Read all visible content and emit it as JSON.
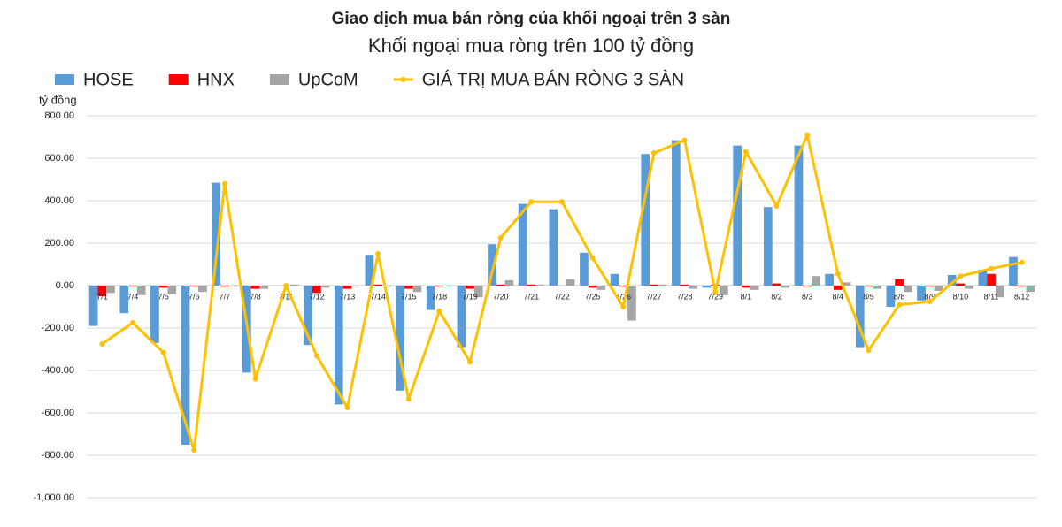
{
  "chart_data": {
    "type": "bar-line",
    "title": "Giao dịch mua bán ròng của khối ngoại trên 3 sàn",
    "subtitle": "Khối ngoại mua ròng trên 100 tỷ đồng",
    "y_label": "tỷ đồng",
    "categories": [
      "7/1",
      "7/4",
      "7/5",
      "7/6",
      "7/7",
      "7/8",
      "7/11",
      "7/12",
      "7/13",
      "7/14",
      "7/15",
      "7/18",
      "7/19",
      "7/20",
      "7/21",
      "7/22",
      "7/25",
      "7/26",
      "7/27",
      "7/28",
      "7/29",
      "8/1",
      "8/2",
      "8/3",
      "8/4",
      "8/5",
      "8/8",
      "8/9",
      "8/10",
      "8/11",
      "8/12"
    ],
    "series": [
      {
        "name": "HOSE",
        "type": "bar",
        "color": "#5b9bd5",
        "values": [
          -190,
          -130,
          -270,
          -750,
          485,
          -410,
          0,
          -280,
          -560,
          145,
          -495,
          -115,
          -290,
          195,
          385,
          360,
          155,
          55,
          620,
          685,
          -10,
          660,
          370,
          660,
          55,
          -290,
          -100,
          -70,
          50,
          75,
          135
        ]
      },
      {
        "name": "HNX",
        "type": "bar",
        "color": "#ff0000",
        "values": [
          -50,
          -5,
          -10,
          -5,
          -5,
          -15,
          0,
          -35,
          -15,
          5,
          -15,
          -5,
          -15,
          5,
          5,
          0,
          -10,
          -5,
          5,
          5,
          5,
          -10,
          10,
          -5,
          -20,
          -5,
          30,
          -5,
          10,
          55,
          -5
        ]
      },
      {
        "name": "UpCoM",
        "type": "bar",
        "color": "#a5a5a5",
        "values": [
          -35,
          -45,
          -40,
          -30,
          -5,
          -15,
          5,
          -10,
          -5,
          -5,
          -30,
          -5,
          -55,
          25,
          5,
          30,
          -20,
          -165,
          5,
          -15,
          -45,
          -20,
          -10,
          45,
          15,
          -15,
          -30,
          -25,
          -15,
          -55,
          -30
        ]
      },
      {
        "name": "GIÁ TRỊ MUA BÁN RÒNG 3 SÀN",
        "type": "line",
        "color": "#ffc000",
        "values": [
          -275,
          -175,
          -315,
          -775,
          480,
          -440,
          0,
          -330,
          -575,
          150,
          -535,
          -120,
          -360,
          225,
          395,
          395,
          130,
          -100,
          625,
          685,
          -30,
          630,
          375,
          710,
          55,
          -305,
          -90,
          -75,
          45,
          80,
          110
        ]
      }
    ],
    "ylim": [
      -1000,
      800
    ],
    "yticks": [
      {
        "value": -1000,
        "label": "-1,000.00"
      },
      {
        "value": -800,
        "label": "-800.00"
      },
      {
        "value": -600,
        "label": "-600.00"
      },
      {
        "value": -400,
        "label": "-400.00"
      },
      {
        "value": -200,
        "label": "-200.00"
      },
      {
        "value": 0,
        "label": "0.00"
      },
      {
        "value": 200,
        "label": "200.00"
      },
      {
        "value": 400,
        "label": "400.00"
      },
      {
        "value": 600,
        "label": "600.00"
      },
      {
        "value": 800,
        "label": "800.00"
      }
    ],
    "grid": true
  }
}
